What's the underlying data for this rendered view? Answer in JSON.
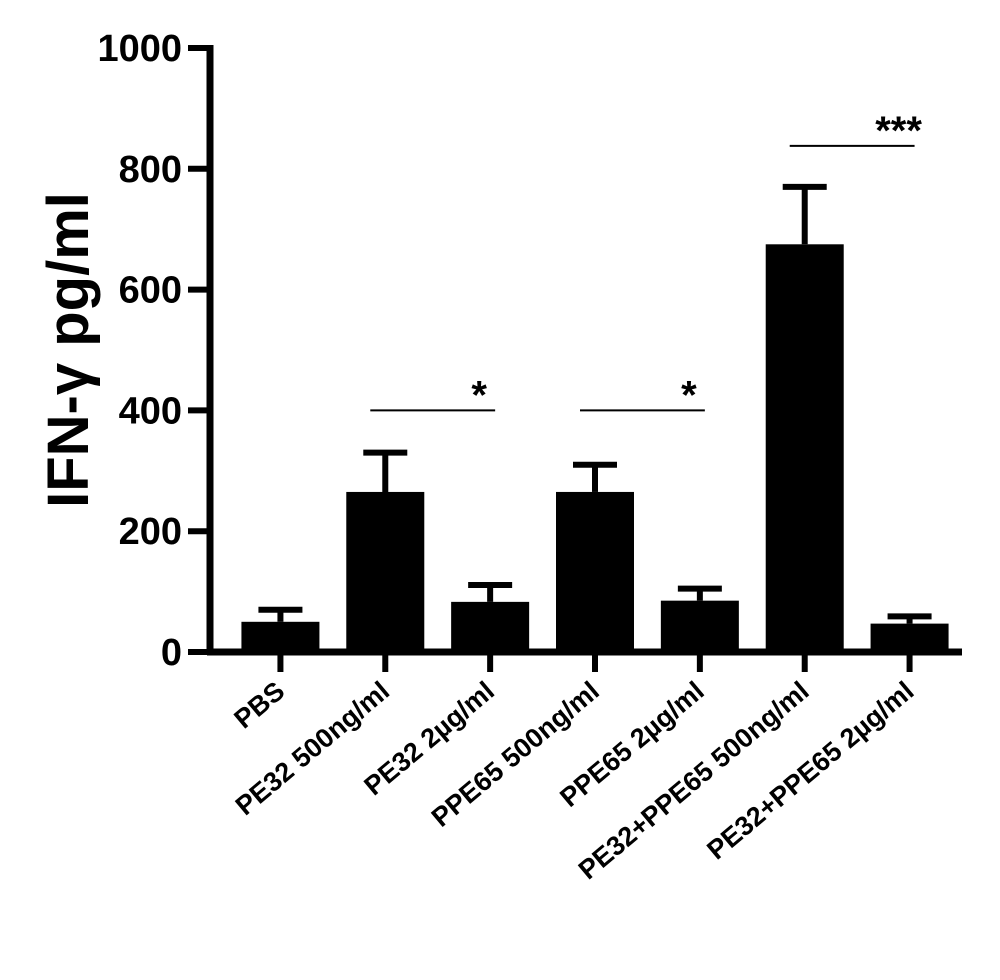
{
  "chart_data": {
    "type": "bar",
    "title": "",
    "xlabel": "",
    "ylabel": "IFN-γ pg/ml",
    "ylim": [
      0,
      1000
    ],
    "yticks": [
      0,
      200,
      400,
      600,
      800,
      1000
    ],
    "categories": [
      "PBS",
      "PE32 500ng/ml",
      "PE32 2µg/ml",
      "PPE65 500ng/ml",
      "PPE65 2µg/ml",
      "PE32+PPE65 500ng/ml",
      "PE32+PPE65 2µg/ml"
    ],
    "values": [
      50,
      265,
      83,
      265,
      85,
      675,
      47
    ],
    "errors": [
      20,
      65,
      28,
      45,
      20,
      95,
      12
    ],
    "bar_color": "#000000",
    "grid": false,
    "legend": "none",
    "significance": [
      {
        "from": 1,
        "to": 2,
        "label": "*",
        "y": 400
      },
      {
        "from": 3,
        "to": 4,
        "label": "*",
        "y": 400
      },
      {
        "from": 5,
        "to": 6,
        "label": "***",
        "y": 838
      }
    ]
  }
}
